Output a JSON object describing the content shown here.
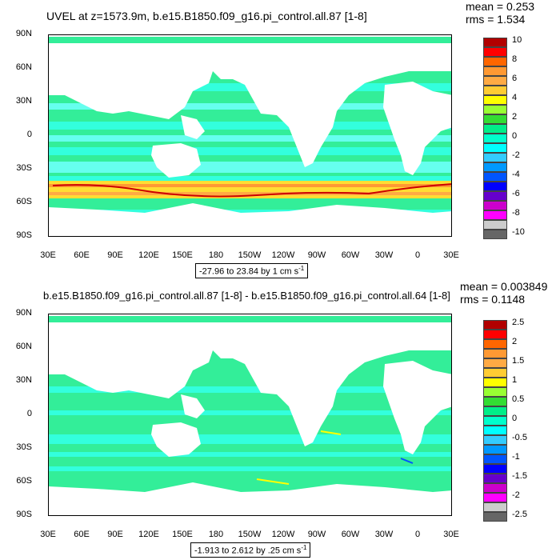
{
  "panels": [
    {
      "title": "UVEL at z=1573.9m, b.e15.B1850.f09_g16.pi_control.all.87 [1-8]",
      "mean": "mean = 0.253",
      "rms": "rms = 1.534",
      "range": "-27.96 to 23.84 by 1 cm s",
      "range_sup": "-1",
      "legend_labels": [
        "10",
        "8",
        "6",
        "4",
        "2",
        "0",
        "-2",
        "-4",
        "-6",
        "-8",
        "-10"
      ]
    },
    {
      "title": "b.e15.B1850.f09_g16.pi_control.all.87 [1-8] - b.e15.B1850.f09_g16.pi_control.all.64 [1-8]",
      "mean": "mean = 0.003849",
      "rms": "rms = 0.1148",
      "range": "-1.913 to 2.612 by .25 cm s",
      "range_sup": "-1",
      "legend_labels": [
        "2.5",
        "2",
        "1.5",
        "1",
        "0.5",
        "0",
        "-0.5",
        "-1",
        "-1.5",
        "-2",
        "-2.5"
      ]
    }
  ],
  "lat_labels": [
    "90N",
    "60N",
    "30N",
    "0",
    "30S",
    "60S",
    "90S"
  ],
  "lon_labels": [
    "30E",
    "60E",
    "90E",
    "120E",
    "150E",
    "180",
    "150W",
    "120W",
    "90W",
    "60W",
    "30W",
    "0",
    "30E"
  ],
  "legend_colors": [
    "#b20000",
    "#ff0000",
    "#ff6600",
    "#ff9933",
    "#ffaa44",
    "#ffcc33",
    "#ffff00",
    "#99ff33",
    "#33dd33",
    "#00ee88",
    "#00ffcc",
    "#00ffff",
    "#33ccff",
    "#0099ff",
    "#0055ff",
    "#0000ff",
    "#6600cc",
    "#cc00cc",
    "#ff00ff",
    "#cccccc",
    "#666666"
  ],
  "colors": {
    "ocean_main": "#33ee99",
    "ocean_band": "#33ffdd",
    "ocean_band2": "#66ffee",
    "ocean_pale": "#00ffcc",
    "acc_yellow": "#ffff33",
    "acc_orange": "#ff9933",
    "acc_red": "#cc0000",
    "land": "#ffffff"
  }
}
